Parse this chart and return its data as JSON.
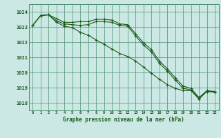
{
  "title": "Graphe pression niveau de la mer (hPa)",
  "background_color": "#cce8e4",
  "grid_color": "#4a9070",
  "line_color": "#1a5c1a",
  "x_ticks": [
    0,
    1,
    2,
    3,
    4,
    5,
    6,
    7,
    8,
    9,
    10,
    11,
    12,
    13,
    14,
    15,
    16,
    17,
    18,
    19,
    20,
    21,
    22,
    23
  ],
  "ylim": [
    1017.5,
    1024.5
  ],
  "yticks": [
    1018,
    1019,
    1020,
    1021,
    1022,
    1023,
    1024
  ],
  "series1": [
    1023.1,
    1023.75,
    1023.8,
    1023.55,
    1023.3,
    1023.3,
    1023.35,
    1023.35,
    1023.5,
    1023.5,
    1023.45,
    1023.2,
    1023.15,
    1022.55,
    1021.95,
    1021.5,
    1020.75,
    1020.25,
    1019.65,
    1019.1,
    1018.95,
    1018.35,
    1018.8,
    1018.75
  ],
  "series2": [
    1023.1,
    1023.75,
    1023.8,
    1023.4,
    1023.2,
    1023.15,
    1023.1,
    1023.15,
    1023.35,
    1023.35,
    1023.3,
    1023.1,
    1023.05,
    1022.4,
    1021.8,
    1021.35,
    1020.6,
    1020.1,
    1019.5,
    1018.95,
    1018.85,
    1018.3,
    1018.75,
    1018.7
  ],
  "series3": [
    1023.1,
    1023.75,
    1023.8,
    1023.3,
    1023.05,
    1022.95,
    1022.65,
    1022.45,
    1022.15,
    1021.85,
    1021.55,
    1021.25,
    1021.05,
    1020.75,
    1020.35,
    1019.95,
    1019.55,
    1019.2,
    1018.95,
    1018.8,
    1018.8,
    1018.25,
    1018.75,
    1018.75
  ]
}
